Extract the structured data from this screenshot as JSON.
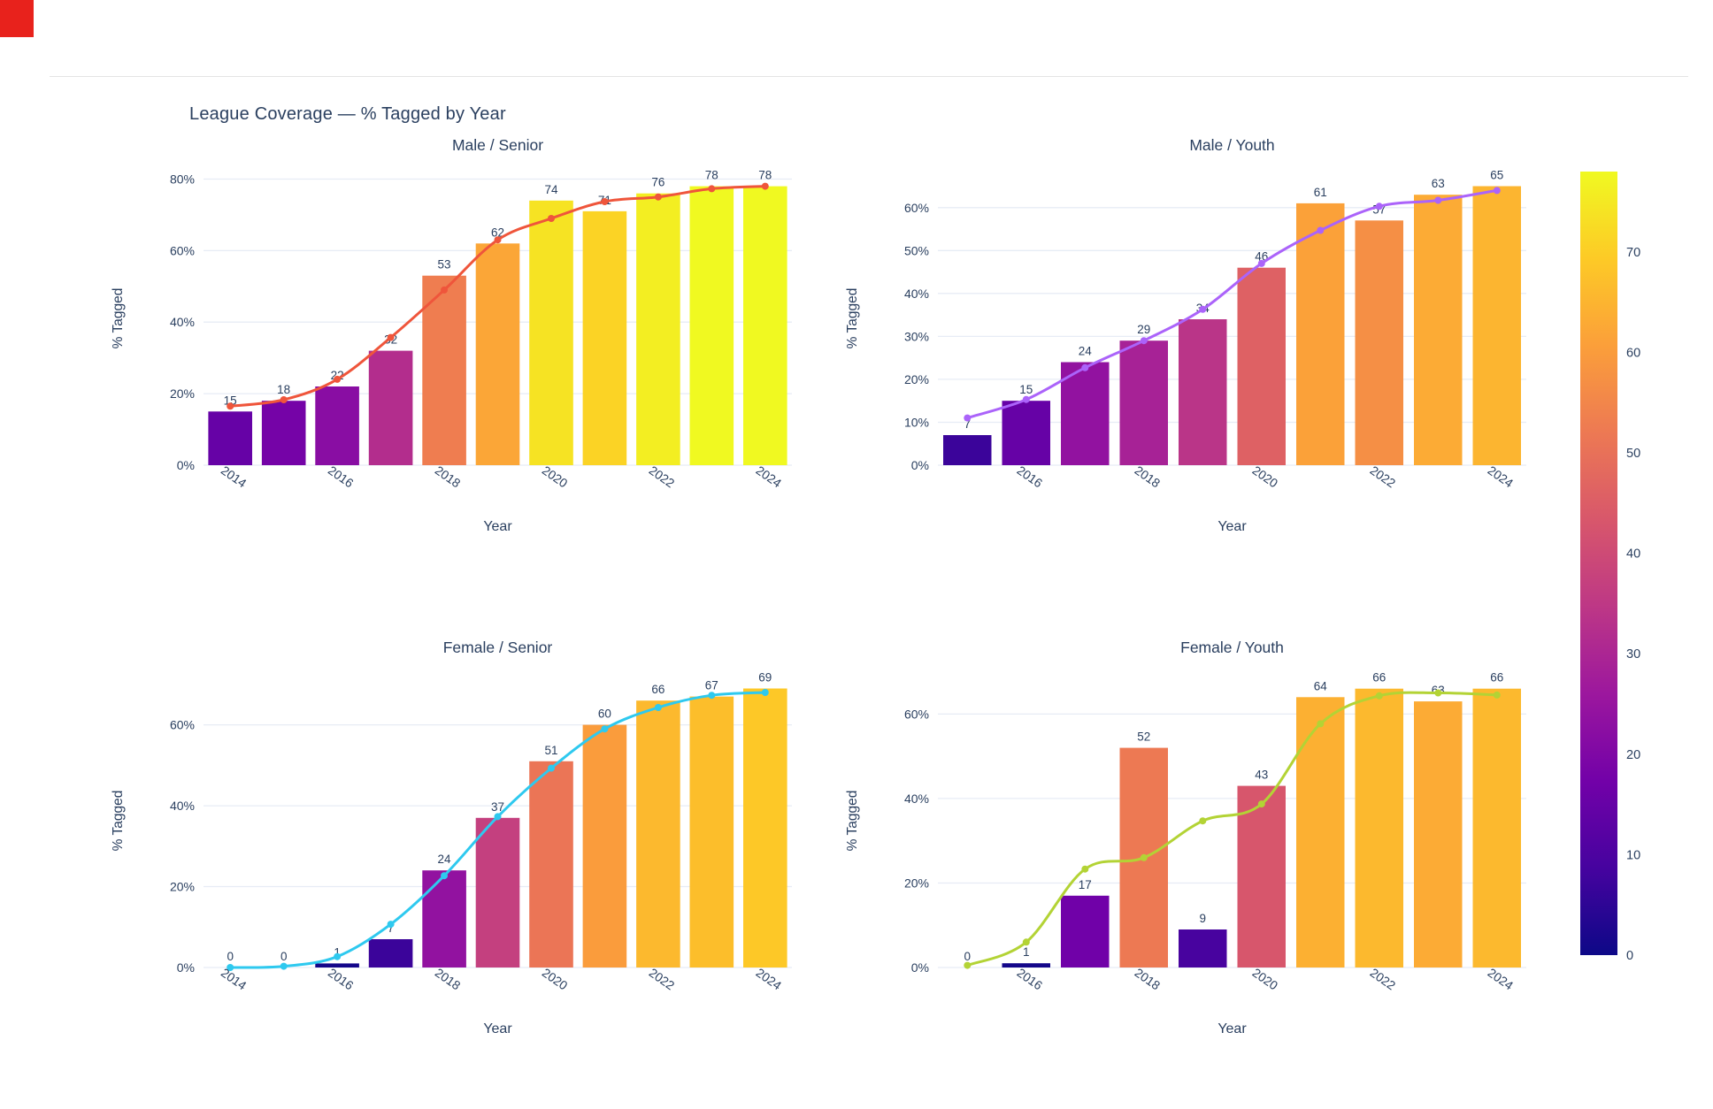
{
  "header": {
    "title": "League Coverage — % Tagged by Year"
  },
  "style": {
    "bg": "#ffffff",
    "text_color": "#2a3f5f",
    "grid_color": "#e7ecf5",
    "divider_color": "#e4e4e4",
    "red_marker_color": "#e8221c",
    "plasma": [
      "#0d0887",
      "#46039f",
      "#7201a8",
      "#9c179e",
      "#bd3786",
      "#d8576b",
      "#ed7953",
      "#fb9f3a",
      "#fdca26",
      "#f0f921"
    ]
  },
  "chart_data": [
    {
      "type": "bar",
      "title": "Male / Senior",
      "xlabel": "Year",
      "ylabel": "% Tagged",
      "years": [
        2014,
        2015,
        2016,
        2017,
        2018,
        2019,
        2020,
        2021,
        2022,
        2023,
        2024
      ],
      "bar_values": [
        15,
        18,
        22,
        32,
        53,
        62,
        74,
        71,
        76,
        78,
        78
      ],
      "line_values": [
        16.5,
        18.3,
        24,
        35.7,
        49,
        63,
        69,
        73.7,
        75,
        77.3,
        78
      ],
      "line_color": "#ef553b",
      "ylim": [
        0,
        82.1
      ],
      "yticks": [
        0,
        20,
        40,
        60,
        80
      ],
      "xticks": [
        2014,
        2016,
        2018,
        2020,
        2022,
        2024
      ]
    },
    {
      "type": "bar",
      "title": "Male / Youth",
      "xlabel": "Year",
      "ylabel": "% Tagged",
      "years": [
        2015,
        2016,
        2017,
        2018,
        2019,
        2020,
        2021,
        2022,
        2023,
        2024
      ],
      "bar_values": [
        7,
        15,
        24,
        29,
        34,
        46,
        61,
        57,
        63,
        65
      ],
      "line_values": [
        11,
        15.3,
        22.7,
        29,
        36.3,
        47,
        54.7,
        60.3,
        61.7,
        64
      ],
      "line_color": "#ab63fa",
      "ylim": [
        0,
        68.4
      ],
      "yticks": [
        0,
        10,
        20,
        30,
        40,
        50,
        60
      ],
      "xticks": [
        2016,
        2018,
        2020,
        2022,
        2024
      ]
    },
    {
      "type": "bar",
      "title": "Female / Senior",
      "xlabel": "Year",
      "ylabel": "% Tagged",
      "years": [
        2014,
        2015,
        2016,
        2017,
        2018,
        2019,
        2020,
        2021,
        2022,
        2023,
        2024
      ],
      "bar_values": [
        0,
        0,
        1,
        7,
        24,
        37,
        51,
        60,
        66,
        67,
        69
      ],
      "line_values": [
        0,
        0.3,
        2.7,
        10.7,
        22.7,
        37.3,
        49.3,
        59,
        64.3,
        67.3,
        68
      ],
      "line_color": "#2ec9ef",
      "ylim": [
        0,
        72.6
      ],
      "yticks": [
        0,
        20,
        40,
        60
      ],
      "xticks": [
        2014,
        2016,
        2018,
        2020,
        2022,
        2024
      ]
    },
    {
      "type": "bar",
      "title": "Female / Youth",
      "xlabel": "Year",
      "ylabel": "% Tagged",
      "years": [
        2015,
        2016,
        2017,
        2018,
        2019,
        2020,
        2021,
        2022,
        2023,
        2024
      ],
      "bar_values": [
        0,
        1,
        17,
        52,
        9,
        43,
        64,
        66,
        63,
        66
      ],
      "line_values": [
        0.5,
        6,
        23.3,
        26,
        34.7,
        38.7,
        57.7,
        64.3,
        65,
        64.5
      ],
      "line_color": "#b3d335",
      "ylim": [
        0,
        69.5
      ],
      "yticks": [
        0,
        20,
        40,
        60
      ],
      "xticks": [
        2016,
        2018,
        2020,
        2022,
        2024
      ]
    }
  ],
  "colorbar": {
    "min": 0,
    "max": 78,
    "ticks": [
      0,
      10,
      20,
      30,
      40,
      50,
      60,
      70
    ]
  }
}
